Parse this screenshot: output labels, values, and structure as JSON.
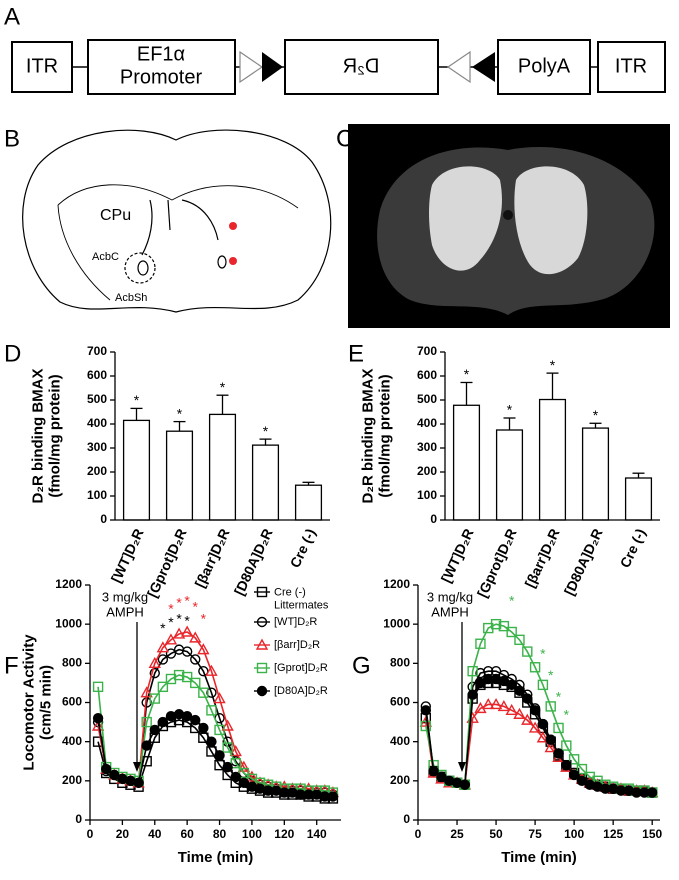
{
  "panel_labels": [
    "A",
    "B",
    "C",
    "D",
    "E",
    "F",
    "G"
  ],
  "construct": {
    "itr_left": "ITR",
    "promoter": "EF1α\nPromoter",
    "insert": "D₂R",
    "polya": "PolyA",
    "itr_right": "ITR"
  },
  "atlas": {
    "region": "CPu",
    "core": "AcbC",
    "shell": "AcbSh"
  },
  "chart_data": [
    {
      "type": "bar",
      "ylabel": "D₂R binding BMAX\n(fmol/mg protein)",
      "categories": [
        "[WT]D₂R",
        "[Gprot]D₂R",
        "[βarr]D₂R",
        "[D80A]D₂R",
        "Cre (-)"
      ],
      "values": [
        415,
        370,
        440,
        312,
        145
      ],
      "errors": [
        50,
        40,
        80,
        25,
        12
      ],
      "significance": [
        "*",
        "*",
        "*",
        "*",
        null
      ],
      "color": "#ffffff",
      "ylim": [
        0,
        700
      ],
      "yticks": [
        0,
        100,
        200,
        300,
        400,
        500,
        600,
        700
      ],
      "grid": false
    },
    {
      "type": "bar",
      "ylabel": "D₂R binding BMAX\n(fmol/mg protein)",
      "categories": [
        "[WT]D₂R",
        "[Gprot]D₂R",
        "[βarr]D₂R",
        "[D80A]D₂R",
        "Cre (-)"
      ],
      "values": [
        478,
        375,
        502,
        383,
        175
      ],
      "errors": [
        95,
        50,
        110,
        20,
        20
      ],
      "significance": [
        "*",
        "*",
        "*",
        "*",
        null
      ],
      "color": "#ffffff",
      "ylim": [
        0,
        700
      ],
      "yticks": [
        0,
        100,
        200,
        300,
        400,
        500,
        600,
        700
      ],
      "grid": false
    },
    {
      "type": "line",
      "xlabel": "Time (min)",
      "ylabel": "Locomotor Activity\n(cm/5 min)",
      "annotation": "3 mg/kg\nAMPH",
      "legend": "upper right",
      "x": [
        5,
        10,
        15,
        20,
        25,
        30,
        35,
        40,
        45,
        50,
        55,
        60,
        65,
        70,
        75,
        80,
        85,
        90,
        95,
        100,
        105,
        110,
        115,
        120,
        125,
        130,
        135,
        140,
        145,
        150
      ],
      "xlim": [
        0,
        155
      ],
      "xticks": [
        0,
        20,
        40,
        60,
        80,
        100,
        120,
        140
      ],
      "ylim": [
        0,
        1200
      ],
      "yticks": [
        0,
        200,
        400,
        600,
        800,
        1000,
        1200
      ],
      "grid": false,
      "series": [
        {
          "name": "Cre (-)\nLittermates",
          "color": "#000000",
          "marker": "square",
          "values": [
            400,
            240,
            210,
            190,
            180,
            170,
            300,
            420,
            480,
            500,
            510,
            500,
            470,
            420,
            350,
            280,
            230,
            190,
            170,
            160,
            150,
            140,
            140,
            130,
            130,
            130,
            120,
            120,
            110,
            110
          ]
        },
        {
          "name": "[WT]D₂R",
          "color": "#000000",
          "marker": "circle",
          "values": [
            500,
            250,
            230,
            210,
            200,
            190,
            600,
            750,
            820,
            850,
            870,
            860,
            820,
            760,
            650,
            520,
            400,
            300,
            240,
            200,
            180,
            170,
            160,
            150,
            150,
            150,
            150,
            140,
            140,
            130
          ],
          "significance": [
            null,
            null,
            null,
            null,
            null,
            null,
            null,
            null,
            "*",
            "*",
            "*",
            "*",
            null,
            null,
            null,
            null,
            null,
            null,
            null,
            null,
            null,
            null,
            null,
            null,
            null,
            null,
            null,
            null,
            null,
            null
          ]
        },
        {
          "name": "[βarr]D₂R",
          "color": "#e8262b",
          "marker": "triangle",
          "values": [
            480,
            260,
            230,
            210,
            200,
            190,
            650,
            800,
            880,
            920,
            950,
            960,
            930,
            870,
            760,
            620,
            480,
            350,
            270,
            220,
            190,
            180,
            170,
            170,
            160,
            160,
            160,
            150,
            150,
            140
          ],
          "significance": [
            null,
            null,
            null,
            null,
            null,
            null,
            null,
            null,
            null,
            "*",
            "*",
            "*",
            "*",
            "*",
            null,
            null,
            null,
            null,
            null,
            null,
            null,
            null,
            null,
            null,
            null,
            null,
            null,
            null,
            null,
            null
          ]
        },
        {
          "name": "[Gprot]D₂R",
          "color": "#3bb34a",
          "marker": "square",
          "values": [
            680,
            270,
            240,
            220,
            210,
            200,
            500,
            620,
            680,
            720,
            740,
            730,
            700,
            650,
            560,
            460,
            370,
            290,
            240,
            210,
            190,
            180,
            170,
            160,
            160,
            160,
            150,
            150,
            150,
            140
          ]
        },
        {
          "name": "[D80A]D₂R",
          "color": "#000000",
          "marker": "dot",
          "values": [
            520,
            260,
            230,
            210,
            200,
            190,
            380,
            460,
            500,
            530,
            540,
            530,
            510,
            470,
            400,
            330,
            270,
            220,
            190,
            170,
            160,
            150,
            150,
            140,
            140,
            130,
            130,
            130,
            120,
            120
          ]
        }
      ]
    },
    {
      "type": "line",
      "xlabel": "Time (min)",
      "annotation": "3 mg/kg\nAMPH",
      "x": [
        5,
        10,
        15,
        20,
        25,
        30,
        35,
        40,
        45,
        50,
        55,
        60,
        65,
        70,
        75,
        80,
        85,
        90,
        95,
        100,
        105,
        110,
        115,
        120,
        125,
        130,
        135,
        140,
        145,
        150
      ],
      "xlim": [
        0,
        155
      ],
      "xticks": [
        0,
        25,
        50,
        75,
        100,
        125,
        150
      ],
      "ylim": [
        0,
        1200
      ],
      "yticks": [
        0,
        200,
        400,
        600,
        800,
        1000,
        1200
      ],
      "grid": false,
      "series": [
        {
          "color": "#000000",
          "marker": "square",
          "values": [
            520,
            250,
            220,
            200,
            190,
            180,
            620,
            690,
            700,
            700,
            690,
            680,
            650,
            600,
            540,
            470,
            400,
            330,
            280,
            240,
            210,
            190,
            180,
            170,
            160,
            160,
            150,
            150,
            150,
            140
          ]
        },
        {
          "color": "#000000",
          "marker": "circle",
          "values": [
            580,
            250,
            220,
            200,
            190,
            180,
            680,
            750,
            760,
            760,
            740,
            720,
            690,
            640,
            570,
            490,
            410,
            340,
            280,
            240,
            210,
            190,
            180,
            170,
            160,
            160,
            150,
            150,
            150,
            140
          ]
        },
        {
          "color": "#e8262b",
          "marker": "triangle",
          "values": [
            500,
            240,
            210,
            190,
            190,
            180,
            520,
            570,
            590,
            590,
            580,
            560,
            540,
            510,
            470,
            420,
            370,
            320,
            270,
            230,
            210,
            190,
            180,
            170,
            160,
            160,
            150,
            150,
            150,
            140
          ]
        },
        {
          "color": "#3bb34a",
          "marker": "square",
          "values": [
            480,
            280,
            230,
            200,
            190,
            180,
            760,
            900,
            980,
            1000,
            990,
            960,
            920,
            860,
            780,
            690,
            580,
            470,
            380,
            310,
            260,
            220,
            200,
            180,
            170,
            160,
            160,
            150,
            150,
            140
          ],
          "significance": [
            null,
            null,
            null,
            null,
            null,
            null,
            null,
            null,
            null,
            null,
            null,
            "*",
            null,
            null,
            null,
            "*",
            "*",
            "*",
            "*",
            null,
            null,
            null,
            null,
            null,
            null,
            null,
            null,
            null,
            null,
            null
          ]
        },
        {
          "color": "#000000",
          "marker": "dot",
          "values": [
            560,
            250,
            220,
            200,
            190,
            180,
            640,
            700,
            720,
            720,
            710,
            690,
            660,
            620,
            560,
            490,
            410,
            340,
            280,
            230,
            200,
            180,
            170,
            160,
            160,
            150,
            150,
            140,
            140,
            140
          ]
        }
      ]
    }
  ]
}
